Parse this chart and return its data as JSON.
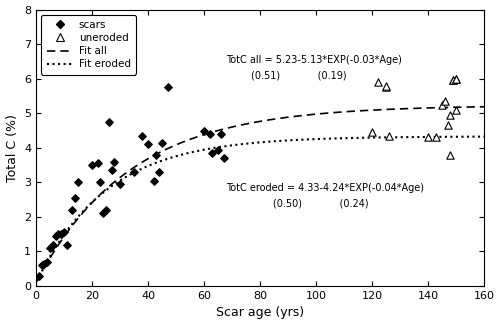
{
  "title": "",
  "xlabel": "Scar age (yrs)",
  "ylabel": "Total C (%)",
  "xlim": [
    0,
    160
  ],
  "ylim": [
    0,
    8
  ],
  "xticks": [
    0,
    20,
    40,
    60,
    80,
    100,
    120,
    140,
    160
  ],
  "yticks": [
    0,
    1,
    2,
    3,
    4,
    5,
    6,
    7,
    8
  ],
  "scars_x": [
    1,
    2,
    3,
    4,
    5,
    6,
    7,
    8,
    9,
    10,
    11,
    13,
    14,
    15,
    20,
    22,
    23,
    24,
    25,
    26,
    27,
    28,
    30,
    35,
    38,
    40,
    42,
    43,
    44,
    45,
    47,
    60,
    62,
    63,
    65,
    66,
    67
  ],
  "scars_y": [
    0.3,
    0.6,
    0.65,
    0.7,
    1.1,
    1.2,
    1.45,
    1.5,
    1.5,
    1.55,
    1.2,
    2.2,
    2.55,
    3.0,
    3.5,
    3.55,
    3.0,
    2.1,
    2.2,
    4.75,
    3.35,
    3.6,
    2.95,
    3.3,
    4.35,
    4.1,
    3.05,
    3.8,
    3.3,
    4.15,
    5.75,
    4.5,
    4.4,
    3.85,
    3.95,
    4.4,
    3.7
  ],
  "uneroded_x": [
    120,
    122,
    125,
    125,
    126,
    140,
    143,
    145,
    146,
    147,
    148,
    148,
    149,
    149,
    150,
    150,
    150
  ],
  "uneroded_y": [
    4.45,
    5.9,
    5.75,
    5.8,
    4.35,
    4.3,
    4.3,
    5.25,
    5.35,
    4.65,
    3.8,
    4.95,
    5.95,
    5.95,
    6.0,
    6.0,
    5.1
  ],
  "fit_all_a": 5.23,
  "fit_all_b": 5.13,
  "fit_all_c": 0.03,
  "fit_eroded_a": 4.33,
  "fit_eroded_b": 4.24,
  "fit_eroded_c": 0.04,
  "ann_all_line1": "TotC all = 5.23-5.13*EXP(-0.03*Age)",
  "ann_all_line2": "        (0.51)            (0.19)",
  "ann_all_x": 68,
  "ann_all_y1": 6.55,
  "ann_all_y2": 6.1,
  "ann_eroded_line1": "TotC eroded = 4.33-4.24*EXP(-0.04*Age)",
  "ann_eroded_line2": "               (0.50)            (0.24)",
  "ann_eroded_x": 68,
  "ann_eroded_y1": 2.85,
  "ann_eroded_y2": 2.4,
  "legend_labels": [
    "scars",
    "uneroded",
    "Fit all",
    "Fit eroded"
  ],
  "fig_width": 5.0,
  "fig_height": 3.25,
  "dpi": 100
}
